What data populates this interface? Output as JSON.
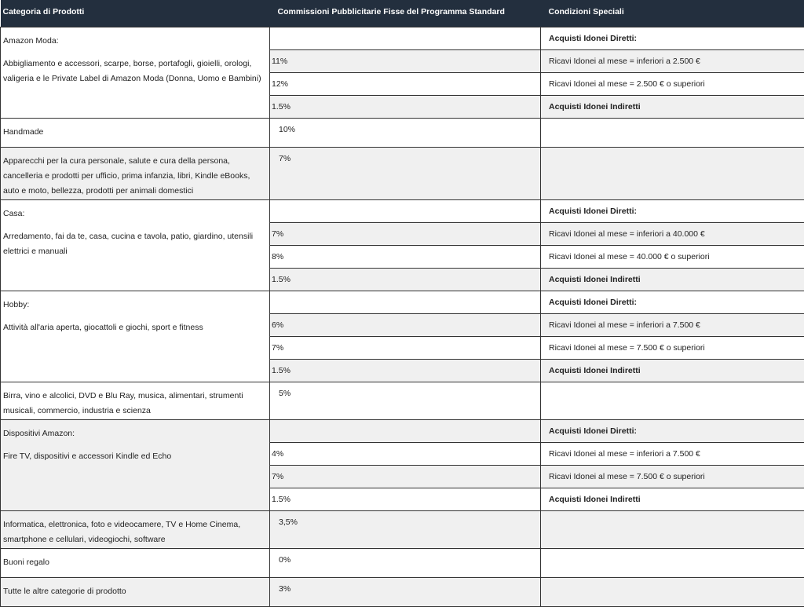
{
  "header": {
    "col1": "Categoria di Prodotti",
    "col2": "Commissioni Pubblicitarie Fisse del Programma Standard",
    "col3": "Condizioni Speciali"
  },
  "colors": {
    "header_bg": "#232f3e",
    "row_alt": "#f0f0f0"
  },
  "rows": [
    {
      "type": "group",
      "title": "Amazon Moda:",
      "description": "Abbigliamento e accessori, scarpe, borse, portafogli, gioielli, orologi, valigeria e le Private Label di Amazon Moda (Donna, Uomo e Bambini)",
      "left_shade": "w",
      "sub": [
        {
          "rate": "",
          "condition": "Acquisti Idonei Diretti:",
          "bold": true,
          "shade": "w"
        },
        {
          "rate": "11%",
          "condition": "Ricavi Idonei al mese = inferiori a 2.500 €",
          "bold": false,
          "shade": "g"
        },
        {
          "rate": "12%",
          "condition": "Ricavi Idonei al mese = 2.500 € o superiori",
          "bold": false,
          "shade": "w"
        },
        {
          "rate": "1.5%",
          "condition": "Acquisti Idonei Indiretti",
          "bold": true,
          "shade": "g"
        }
      ]
    },
    {
      "type": "single",
      "category": "Handmade",
      "rate": "10%",
      "condition": "",
      "shade": "w",
      "height": 29
    },
    {
      "type": "single",
      "category": "Apparecchi per la cura personale, salute e cura della persona, cancelleria e prodotti per ufficio, prima infanzia, libri, Kindle eBooks, auto e moto, bellezza, prodotti per animali domestici",
      "rate": "7%",
      "condition": "",
      "shade": "g",
      "height": 67
    },
    {
      "type": "group",
      "title": "Casa:",
      "description": "Arredamento, fai da te, casa, cucina e tavola, patio, giardino, utensili elettrici e manuali",
      "left_shade": "w",
      "sub": [
        {
          "rate": "",
          "condition": "Acquisti Idonei Diretti:",
          "bold": true,
          "shade": "w"
        },
        {
          "rate": "7%",
          "condition": "Ricavi Idonei al mese = inferiori a 40.000 €",
          "bold": false,
          "shade": "g"
        },
        {
          "rate": "8%",
          "condition": "Ricavi Idonei al mese = 40.000 € o superiori",
          "bold": false,
          "shade": "w"
        },
        {
          "rate": "1.5%",
          "condition": "Acquisti Idonei Indiretti",
          "bold": true,
          "shade": "g"
        }
      ]
    },
    {
      "type": "group",
      "title": "Hobby:",
      "description": "Attività all'aria aperta, giocattoli e giochi, sport e fitness",
      "left_shade": "w",
      "sub": [
        {
          "rate": "",
          "condition": "Acquisti Idonei Diretti:",
          "bold": true,
          "shade": "w"
        },
        {
          "rate": "6%",
          "condition": "Ricavi Idonei al mese = inferiori a 7.500 €",
          "bold": false,
          "shade": "g"
        },
        {
          "rate": "7%",
          "condition": "Ricavi Idonei al mese = 7.500 € o superiori",
          "bold": false,
          "shade": "w"
        },
        {
          "rate": "1.5%",
          "condition": "Acquisti Idonei Indiretti",
          "bold": true,
          "shade": "g"
        }
      ]
    },
    {
      "type": "single",
      "category": "Birra, vino e alcolici, DVD e Blu Ray, musica, alimentari, strumenti musicali, commercio, industria e scienza",
      "rate": "5%",
      "condition": "",
      "shade": "w",
      "height": 48
    },
    {
      "type": "group",
      "title": "Dispositivi Amazon:",
      "description": "Fire TV, dispositivi e accessori Kindle ed Echo",
      "left_shade": "g",
      "sub": [
        {
          "rate": "",
          "condition": "Acquisti Idonei Diretti:",
          "bold": true,
          "shade": "g"
        },
        {
          "rate": "4%",
          "condition": "Ricavi Idonei al mese = inferiori a 7.500 €",
          "bold": false,
          "shade": "w"
        },
        {
          "rate": "7%",
          "condition": "Ricavi Idonei al mese = 7.500 € o superiori",
          "bold": false,
          "shade": "g"
        },
        {
          "rate": "1.5%",
          "condition": "Acquisti Idonei Indiretti",
          "bold": true,
          "shade": "w"
        }
      ]
    },
    {
      "type": "single",
      "category": "Informatica, elettronica, foto e videocamere, TV e Home Cinema, smartphone e cellulari, videogiochi, software",
      "rate": "3,5%",
      "condition": "",
      "shade": "g",
      "height": 48
    },
    {
      "type": "single",
      "category": "Buoni regalo",
      "rate": "0%",
      "condition": "",
      "shade": "w",
      "height": 29
    },
    {
      "type": "single",
      "category": "Tutte le altre categorie di prodotto",
      "rate": "3%",
      "condition": "",
      "shade": "g",
      "height": 26
    }
  ]
}
